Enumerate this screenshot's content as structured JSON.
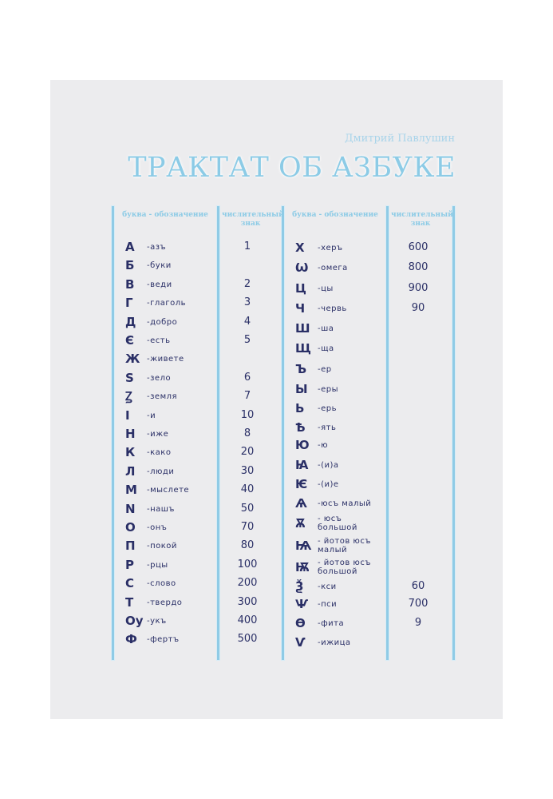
{
  "author": "Дмитрий Павлушин",
  "title": "ТРАКТАТ ОБ АЗБУКЕ",
  "headers": {
    "letter": "буква - обозначение",
    "number": "числительный знак"
  },
  "left": [
    {
      "l": "А",
      "n": "-азъ",
      "v": "1"
    },
    {
      "l": "Б",
      "n": "-буки",
      "v": ""
    },
    {
      "l": "В",
      "n": "-веди",
      "v": "2"
    },
    {
      "l": "Г",
      "n": "-глаголь",
      "v": "3"
    },
    {
      "l": "Д",
      "n": "-добро",
      "v": "4"
    },
    {
      "l": "Є",
      "n": "-есть",
      "v": "5"
    },
    {
      "l": "Ж",
      "n": "-живете",
      "v": ""
    },
    {
      "l": "Ѕ",
      "n": "-зело",
      "v": "6"
    },
    {
      "l": "Ꙁ",
      "n": "-земля",
      "v": "7"
    },
    {
      "l": "І",
      "n": "-и",
      "v": "10"
    },
    {
      "l": "Н",
      "n": "-иже",
      "v": "8"
    },
    {
      "l": "К",
      "n": "-како",
      "v": "20"
    },
    {
      "l": "Л",
      "n": "-люди",
      "v": "30"
    },
    {
      "l": "М",
      "n": "-мыслете",
      "v": "40"
    },
    {
      "l": "N",
      "n": "-нашъ",
      "v": "50"
    },
    {
      "l": "О",
      "n": "-онъ",
      "v": "70"
    },
    {
      "l": "П",
      "n": "-покой",
      "v": "80"
    },
    {
      "l": "Р",
      "n": "-рцы",
      "v": "100"
    },
    {
      "l": "С",
      "n": "-слово",
      "v": "200"
    },
    {
      "l": "Т",
      "n": "-твердо",
      "v": "300"
    },
    {
      "l": "Оу",
      "n": "-укъ",
      "v": "400"
    },
    {
      "l": "Ф",
      "n": "-фертъ",
      "v": "500"
    }
  ],
  "right": [
    {
      "l": "Х",
      "n": "-херъ",
      "v": "600"
    },
    {
      "l": "Ѡ",
      "n": "-омега",
      "v": "800"
    },
    {
      "l": "Ц",
      "n": "-цы",
      "v": "900"
    },
    {
      "l": "Ч",
      "n": "-червь",
      "v": "90"
    },
    {
      "l": "Ш",
      "n": "-ша",
      "v": ""
    },
    {
      "l": "Щ",
      "n": "-ща",
      "v": ""
    },
    {
      "l": "Ъ",
      "n": "-ер",
      "v": ""
    },
    {
      "l": "Ы",
      "n": "-еры",
      "v": ""
    },
    {
      "l": "Ь",
      "n": "-ерь",
      "v": ""
    },
    {
      "l": "Ѣ",
      "n": "-ять",
      "v": ""
    },
    {
      "l": "Ю",
      "n": "-ю",
      "v": ""
    },
    {
      "l": "Ꙗ",
      "n": "-(и)а",
      "v": ""
    },
    {
      "l": "Ѥ",
      "n": "-(и)е",
      "v": ""
    },
    {
      "l": "Ѧ",
      "n": "-юсъ малый",
      "v": ""
    },
    {
      "l": "Ѫ",
      "n": "- юсъ большой",
      "v": ""
    },
    {
      "l": "Ѩ",
      "n": "- йотов юсъ малый",
      "v": ""
    },
    {
      "l": "Ѭ",
      "n": "- йотов юсъ большой",
      "v": ""
    },
    {
      "l": "Ѯ",
      "n": "-кси",
      "v": "60"
    },
    {
      "l": "Ѱ",
      "n": "-пси",
      "v": "700"
    },
    {
      "l": "Ѳ",
      "n": "-фита",
      "v": "9"
    },
    {
      "l": "Ѵ",
      "n": "-ижица",
      "v": ""
    }
  ]
}
